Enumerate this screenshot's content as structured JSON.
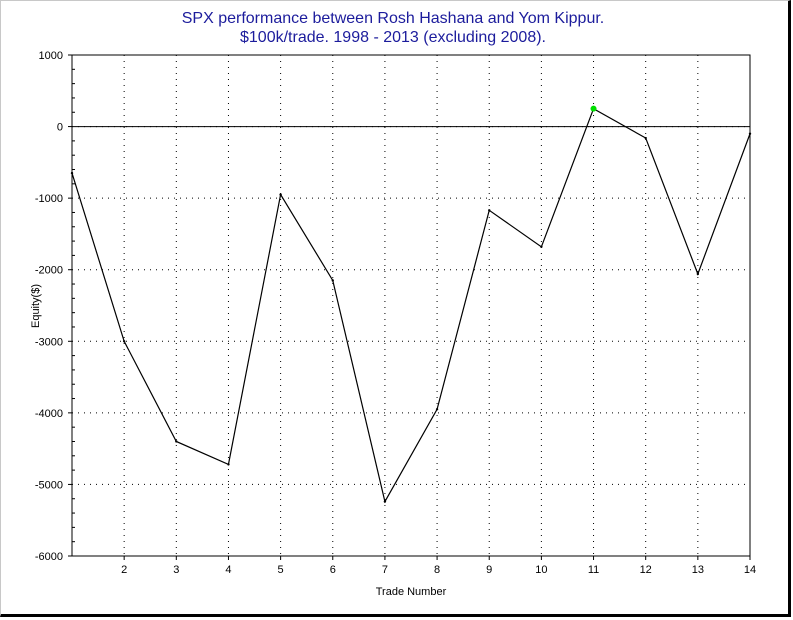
{
  "chart_data": {
    "type": "line",
    "title_lines": [
      "SPX performance between Rosh Hashana and Yom Kippur.",
      "$100k/trade. 1998 - 2013 (excluding 2008)."
    ],
    "xlabel": "Trade Number",
    "ylabel": "Equity($)",
    "xlim": [
      1,
      14
    ],
    "ylim": [
      -6000,
      1000
    ],
    "x_ticks": [
      2,
      3,
      4,
      5,
      6,
      7,
      8,
      9,
      10,
      11,
      12,
      13,
      14
    ],
    "y_ticks": [
      1000,
      0,
      -1000,
      -2000,
      -3000,
      -4000,
      -5000,
      -6000
    ],
    "grid": "dotted",
    "series": [
      {
        "color": "#000000",
        "x": [
          1,
          2,
          3,
          4,
          5,
          6,
          7,
          8,
          9,
          10,
          11,
          12,
          13,
          14
        ],
        "values": [
          -650,
          -3000,
          -4400,
          -4720,
          -950,
          -2150,
          -5240,
          -3950,
          -1170,
          -1680,
          250,
          -160,
          -2060,
          -100
        ]
      }
    ],
    "highlight_point": {
      "x": 11,
      "y": 250,
      "color": "#00e000"
    },
    "zero_line": true
  }
}
